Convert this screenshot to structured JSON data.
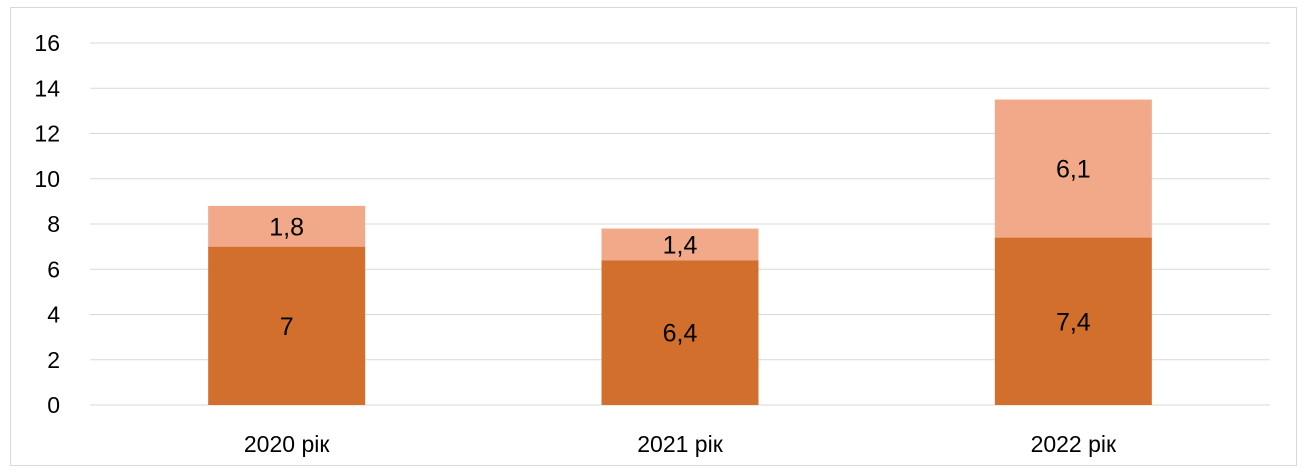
{
  "chart_data": {
    "type": "bar",
    "stacked": true,
    "categories": [
      "2020 рік",
      "2021 рік",
      "2022 рік"
    ],
    "series": [
      {
        "values": [
          7,
          6.4,
          7.4
        ],
        "labels": [
          "7",
          "6,4",
          "7,4"
        ],
        "color": "#d26f2d"
      },
      {
        "values": [
          1.8,
          1.4,
          6.1
        ],
        "labels": [
          "1,8",
          "1,4",
          "6,1"
        ],
        "color": "#f1a98a"
      }
    ],
    "ylim": [
      0,
      16
    ],
    "yticks": [
      "0",
      "2",
      "4",
      "6",
      "8",
      "10",
      "12",
      "14",
      "16"
    ],
    "grid": true,
    "legend": "none",
    "title": "",
    "xlabel": "",
    "ylabel": ""
  },
  "colors": {
    "grid": "#d9d9d9",
    "axis": "#d9d9d9",
    "frame": "#d9d9d9"
  }
}
